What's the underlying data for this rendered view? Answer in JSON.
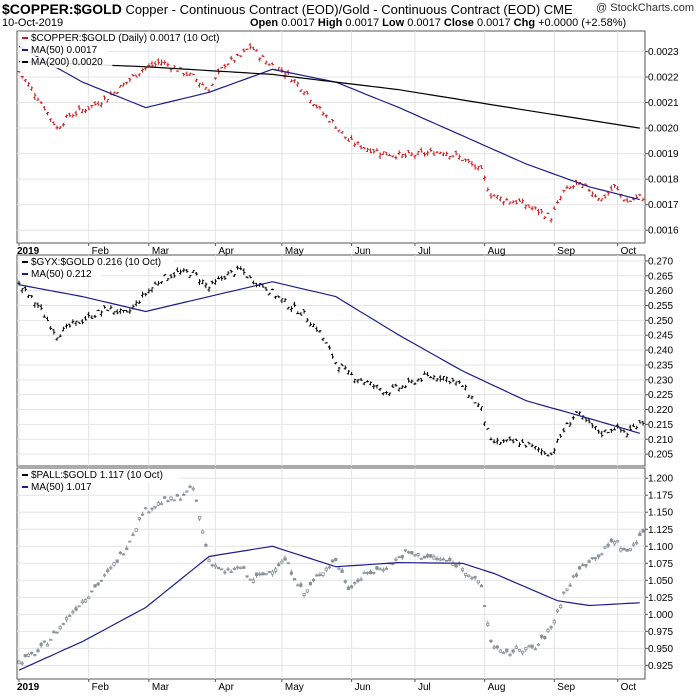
{
  "header": {
    "symbol": "$COPPER:$GOLD",
    "description": "Copper - Continuous Contract (EOD)/Gold - Continuous Contract (EOD)",
    "exchange": "CME",
    "date": "10-Oct-2019",
    "open_label": "Open",
    "open_value": "0.0017",
    "high_label": "High",
    "high_value": "0.0017",
    "low_label": "Low",
    "low_value": "0.0017",
    "close_label": "Close",
    "close_value": "0.0017",
    "chg_label": "Chg",
    "chg_value": "+0.0000 (+2.58%)",
    "copyright": "@ StockCharts.com"
  },
  "x_axis": {
    "months": [
      "2019",
      "Feb",
      "Mar",
      "Apr",
      "May",
      "Jun",
      "Jul",
      "Aug",
      "Sep",
      "Oct"
    ],
    "month_index": [
      0,
      22,
      41,
      62,
      83,
      105,
      125,
      147,
      169,
      189
    ],
    "total_days": 197
  },
  "colors": {
    "panel1_price": "#d01818",
    "panel2_price": "#000000",
    "panel3_price": "#8a9098",
    "ma50": "#1b1f8a",
    "ma200": "#000000",
    "grid": "#e4e4e4"
  },
  "chart_data": [
    {
      "type": "line",
      "legend": [
        {
          "text": "$COPPER:$GOLD (Daily) 0.0017 (10 Oct)",
          "color": "#d01818"
        },
        {
          "text": "MA(50) 0.0017",
          "color": "#1b1f8a"
        },
        {
          "text": "MA(200) 0.0020",
          "color": "#000000"
        }
      ],
      "ylim": [
        0.00155,
        0.00238
      ],
      "yticks": [
        "0.0016",
        "0.0017",
        "0.0018",
        "0.0019",
        "0.0020",
        "0.0021",
        "0.0022",
        "0.0023"
      ],
      "ytick_values": [
        0.0016,
        0.0017,
        0.0018,
        0.0019,
        0.002,
        0.0021,
        0.0022,
        0.0023
      ],
      "series": [
        {
          "name": "$COPPER:$GOLD",
          "style": "ohlc",
          "x": [
            0,
            6,
            12,
            16,
            22,
            28,
            34,
            39,
            45,
            50,
            55,
            60,
            65,
            70,
            73,
            78,
            84,
            90,
            95,
            100,
            104,
            110,
            116,
            122,
            128,
            134,
            140,
            146,
            149,
            153,
            158,
            163,
            168,
            172,
            176,
            180,
            184,
            188,
            192,
            196
          ],
          "values": [
            0.00222,
            0.00212,
            0.002,
            0.00205,
            0.00208,
            0.00212,
            0.00218,
            0.00223,
            0.00226,
            0.00223,
            0.0022,
            0.00215,
            0.00225,
            0.00228,
            0.00232,
            0.00226,
            0.00222,
            0.00215,
            0.00207,
            0.00201,
            0.00195,
            0.00192,
            0.0019,
            0.00189,
            0.0019,
            0.00191,
            0.00188,
            0.00183,
            0.00174,
            0.00172,
            0.00171,
            0.00168,
            0.00165,
            0.00175,
            0.00178,
            0.00176,
            0.00172,
            0.00177,
            0.00171,
            0.00173
          ]
        },
        {
          "name": "MA(50)",
          "x": [
            0,
            20,
            40,
            60,
            80,
            100,
            120,
            140,
            160,
            180,
            196
          ],
          "values": [
            0.00232,
            0.00218,
            0.00208,
            0.00214,
            0.00223,
            0.00218,
            0.00208,
            0.00197,
            0.00186,
            0.00177,
            0.00172
          ]
        },
        {
          "name": "MA(200)",
          "x": [
            0,
            40,
            80,
            120,
            160,
            196
          ],
          "values": [
            0.00226,
            0.00224,
            0.00221,
            0.00215,
            0.00207,
            0.002
          ]
        }
      ]
    },
    {
      "type": "line",
      "legend": [
        {
          "text": "$GYX:$GOLD 0.216 (10 Oct)",
          "color": "#000000"
        },
        {
          "text": "MA(50) 0.212",
          "color": "#1b1f8a"
        }
      ],
      "ylim": [
        0.201,
        0.272
      ],
      "yticks": [
        "0.205",
        "0.210",
        "0.215",
        "0.220",
        "0.225",
        "0.230",
        "0.235",
        "0.240",
        "0.245",
        "0.250",
        "0.255",
        "0.260",
        "0.265",
        "0.270"
      ],
      "ytick_values": [
        0.205,
        0.21,
        0.215,
        0.22,
        0.225,
        0.23,
        0.235,
        0.24,
        0.245,
        0.25,
        0.255,
        0.26,
        0.265,
        0.27
      ],
      "series": [
        {
          "name": "$GYX:$GOLD",
          "style": "ohlc",
          "x": [
            0,
            6,
            12,
            16,
            22,
            28,
            34,
            39,
            45,
            50,
            55,
            60,
            65,
            70,
            73,
            78,
            84,
            90,
            95,
            100,
            104,
            110,
            116,
            122,
            128,
            134,
            140,
            146,
            149,
            153,
            158,
            163,
            168,
            172,
            176,
            180,
            184,
            188,
            192,
            196
          ],
          "values": [
            0.262,
            0.255,
            0.245,
            0.248,
            0.251,
            0.254,
            0.252,
            0.258,
            0.264,
            0.266,
            0.266,
            0.261,
            0.265,
            0.267,
            0.264,
            0.261,
            0.256,
            0.252,
            0.246,
            0.236,
            0.232,
            0.229,
            0.226,
            0.228,
            0.231,
            0.231,
            0.228,
            0.22,
            0.209,
            0.209,
            0.209,
            0.207,
            0.205,
            0.213,
            0.219,
            0.215,
            0.212,
            0.214,
            0.212,
            0.216
          ]
        },
        {
          "name": "MA(50)",
          "x": [
            0,
            20,
            40,
            60,
            80,
            100,
            120,
            140,
            160,
            180,
            196
          ],
          "values": [
            0.262,
            0.258,
            0.253,
            0.258,
            0.263,
            0.258,
            0.245,
            0.233,
            0.223,
            0.217,
            0.212
          ]
        }
      ]
    },
    {
      "type": "line",
      "legend": [
        {
          "text": "$PALL:$GOLD 1.117 (10 Oct)",
          "color": "#000000"
        },
        {
          "text": "MA(50) 1.017",
          "color": "#1b1f8a"
        }
      ],
      "ylim": [
        0.905,
        1.215
      ],
      "yticks": [
        "0.925",
        "0.950",
        "0.975",
        "1.000",
        "1.025",
        "1.050",
        "1.075",
        "1.100",
        "1.125",
        "1.150",
        "1.175",
        "1.200"
      ],
      "ytick_values": [
        0.925,
        0.95,
        0.975,
        1.0,
        1.025,
        1.05,
        1.075,
        1.1,
        1.125,
        1.15,
        1.175,
        1.2
      ],
      "series": [
        {
          "name": "$PALL:$GOLD",
          "style": "ohlc",
          "x": [
            0,
            6,
            12,
            16,
            22,
            28,
            34,
            39,
            45,
            50,
            55,
            60,
            65,
            70,
            73,
            78,
            84,
            90,
            95,
            100,
            104,
            110,
            116,
            122,
            128,
            134,
            140,
            146,
            149,
            153,
            158,
            163,
            168,
            172,
            176,
            180,
            184,
            188,
            192,
            196
          ],
          "values": [
            0.93,
            0.945,
            0.975,
            1.0,
            1.03,
            1.06,
            1.1,
            1.15,
            1.165,
            1.17,
            1.185,
            1.08,
            1.06,
            1.07,
            1.05,
            1.06,
            1.08,
            1.03,
            1.06,
            1.08,
            1.04,
            1.06,
            1.07,
            1.09,
            1.085,
            1.08,
            1.07,
            1.04,
            0.96,
            0.94,
            0.95,
            0.95,
            0.98,
            1.03,
            1.06,
            1.08,
            1.09,
            1.11,
            1.09,
            1.117
          ]
        },
        {
          "name": "MA(50)",
          "x": [
            0,
            20,
            40,
            60,
            80,
            100,
            120,
            140,
            150,
            160,
            170,
            180,
            196
          ],
          "values": [
            0.918,
            0.96,
            1.01,
            1.085,
            1.1,
            1.07,
            1.076,
            1.075,
            1.06,
            1.04,
            1.02,
            1.013,
            1.017
          ]
        }
      ]
    }
  ]
}
